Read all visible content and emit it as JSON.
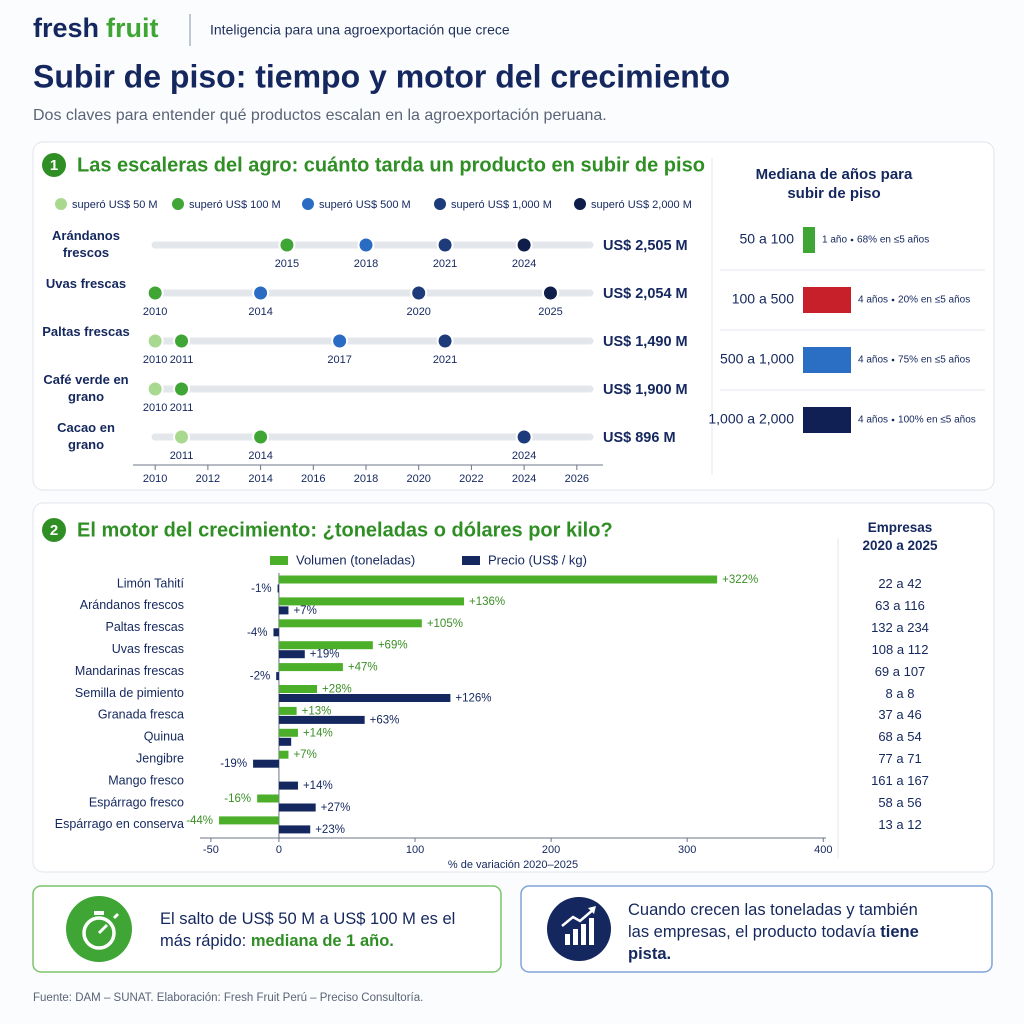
{
  "header": {
    "brand": "fresh",
    "brand_accent": "fruit",
    "tagline": "Inteligencia para una agroexportación que crece",
    "title": "Subir de piso: tiempo y motor del crecimiento",
    "subtitle": "Dos claves para entender qué productos escalan en la agroexportación peruana."
  },
  "sections": [
    {
      "number": "1",
      "title": "Las escaleras del agro: cuánto tarda un producto en subir de piso"
    },
    {
      "number": "2",
      "title": "El motor del crecimiento: ¿toneladas o dólares por kilo?"
    }
  ],
  "chart_data": [
    {
      "type": "timeline",
      "categories": [
        "Arándanos frescos",
        "Uvas frescas",
        "Paltas frescas",
        "Café verde en grano",
        "Cacao en grano"
      ],
      "series": [
        {
          "name": "superó US$ 50 M",
          "color": "#a8d98f",
          "values": [
            null,
            null,
            2010,
            2010,
            2011
          ]
        },
        {
          "name": "superó US$ 100 M",
          "color": "#3fa535",
          "values": [
            2015,
            2010,
            2011,
            2011,
            2014
          ]
        },
        {
          "name": "superó US$ 500 M",
          "color": "#2a6cc4",
          "values": [
            2018,
            2014,
            2017,
            null,
            null
          ]
        },
        {
          "name": "superó US$ 1,000 M",
          "color": "#1d3a7a",
          "values": [
            2021,
            2020,
            2021,
            null,
            2024
          ]
        },
        {
          "name": "superó US$ 2,000 M",
          "color": "#0f1d4a",
          "values": [
            2024,
            2025,
            null,
            null,
            null
          ]
        }
      ],
      "totals": {
        "values": [
          2505,
          2054,
          1490,
          1900,
          896
        ],
        "value_labels": [
          "US$ 2,505 M",
          "US$ 2,054 M",
          "US$ 1,490 M",
          "US$ 1,900 M",
          "US$ 896 M"
        ]
      },
      "xlim": [
        2009.5,
        2026.5
      ],
      "xticks": [
        2010,
        2012,
        2014,
        2016,
        2018,
        2020,
        2022,
        2024,
        2026
      ]
    },
    {
      "type": "bar",
      "title": "Mediana de años para subir de piso",
      "categories": [
        "50 a 100",
        "100 a 500",
        "500 a 1,000",
        "1,000 a 2,000"
      ],
      "values": [
        1,
        4,
        4,
        4
      ],
      "value_labels": [
        "1 año",
        "4 años",
        "4 años",
        "4 años"
      ],
      "notes": [
        "68% en ≤5 años",
        "20% en ≤5 años",
        "75% en ≤5 años",
        "100% en ≤5 años"
      ],
      "colors": [
        "#3fa535",
        "#c8202a",
        "#2a6fc4",
        "#102055"
      ],
      "xlim": [
        0,
        5
      ]
    },
    {
      "type": "grouped_bar",
      "categories": [
        "Limón Tahití",
        "Arándanos frescos",
        "Paltas frescas",
        "Uvas frescas",
        "Mandarinas frescas",
        "Semilla de pimiento",
        "Granada fresca",
        "Quinua",
        "Jengibre",
        "Mango fresco",
        "Espárrago fresco",
        "Espárrago en conserva"
      ],
      "series": [
        {
          "name": "Volumen (toneladas)",
          "color": "#4caf2a",
          "label_color": "#3a8f25",
          "values": [
            322,
            136,
            105,
            69,
            47,
            28,
            13,
            14,
            7,
            null,
            -16,
            -44
          ],
          "value_labels": [
            "+322%",
            "+136%",
            "+105%",
            "+69%",
            "+47%",
            "+28%",
            "+13%",
            "+14%",
            "+7%",
            null,
            "-16%",
            "-44%"
          ]
        },
        {
          "name": "Precio (US$ / kg)",
          "color": "#14275e",
          "label_color": "#14275e",
          "values": [
            -1,
            7,
            -4,
            19,
            -2,
            126,
            63,
            9,
            -19,
            14,
            27,
            23
          ],
          "value_labels": [
            "-1%",
            "+7%",
            "-4%",
            "+19%",
            "-2%",
            "+126%",
            "+63%",
            null,
            "-19%",
            "+14%",
            "+27%",
            "+23%"
          ]
        }
      ],
      "xlabel": "% de variación 2020–2025",
      "xlim": [
        -58,
        402
      ],
      "xticks": [
        -50,
        0,
        100,
        200,
        300,
        400
      ],
      "companies": {
        "title": "Empresas 2020 a 2025",
        "labels": [
          "22 a 42",
          "63 a 116",
          "132 a 234",
          "108 a 112",
          "69 a 107",
          "8 a 8",
          "37 a 46",
          "68 a 54",
          "77 a 71",
          "161 a 167",
          "58 a 56",
          "13 a 12"
        ]
      }
    }
  ],
  "callouts": [
    {
      "text": "El salto de US$ 50 M a US$ 100 M es el más rápido:",
      "highlight": "mediana de 1 año."
    },
    {
      "text": "Cuando crecen las toneladas y también las empresas, el producto todavía",
      "highlight": "tiene pista."
    }
  ],
  "source": "Fuente: DAM – SUNAT. Elaboración: Fresh Fruit Perú – Preciso Consultoría."
}
